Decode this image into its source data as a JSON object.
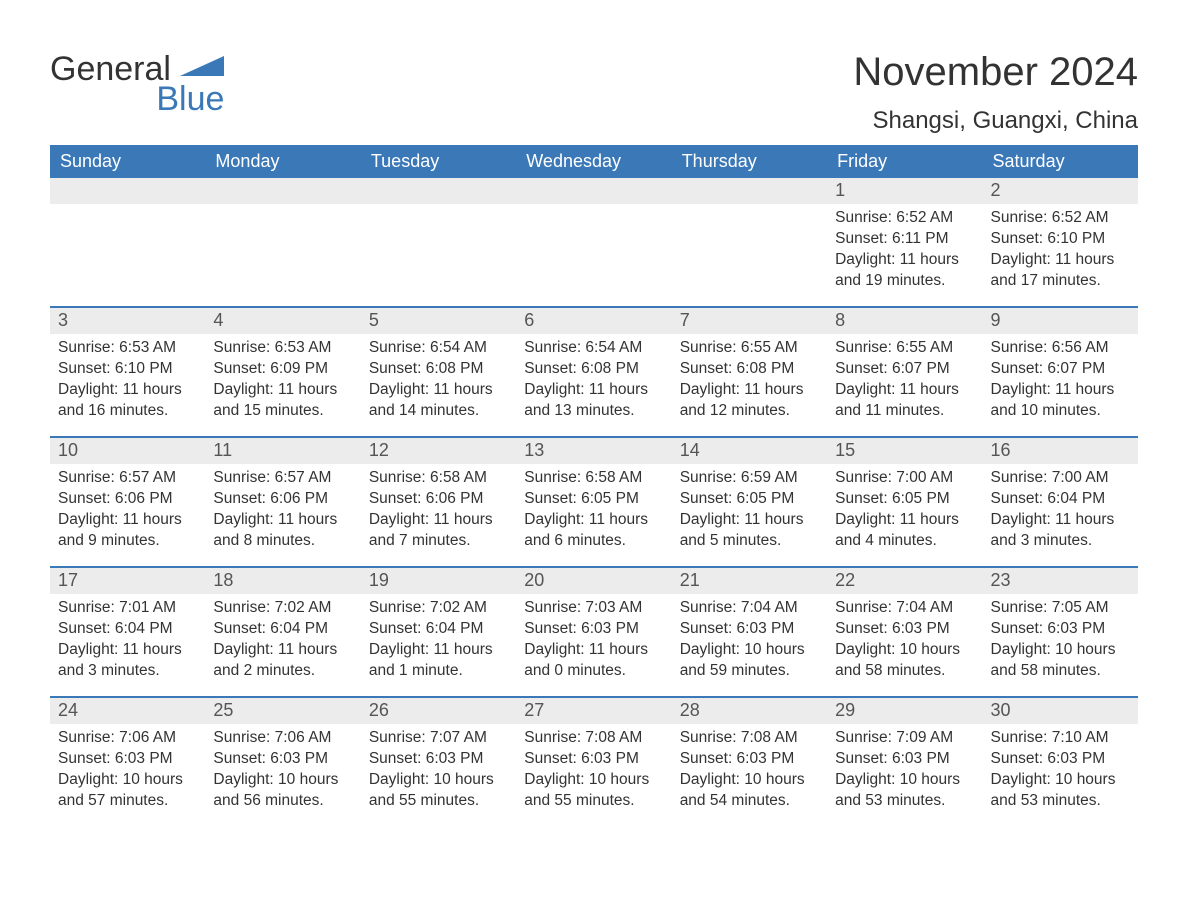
{
  "logo": {
    "text_top": "General",
    "text_bottom": "Blue",
    "shape_color": "#3a78b8"
  },
  "title": "November 2024",
  "subtitle": "Shangsi, Guangxi, China",
  "colors": {
    "header_bg": "#3a78b8",
    "header_text": "#ffffff",
    "daynum_bg": "#ececec",
    "text": "#333333",
    "week_divider": "#3a78b8",
    "page_bg": "#ffffff"
  },
  "fonts": {
    "title_size_pt": 30,
    "subtitle_size_pt": 18,
    "header_size_pt": 14,
    "body_size_pt": 12
  },
  "day_headers": [
    "Sunday",
    "Monday",
    "Tuesday",
    "Wednesday",
    "Thursday",
    "Friday",
    "Saturday"
  ],
  "weeks": [
    [
      {
        "blank": true
      },
      {
        "blank": true
      },
      {
        "blank": true
      },
      {
        "blank": true
      },
      {
        "blank": true
      },
      {
        "day": "1",
        "sunrise": "Sunrise: 6:52 AM",
        "sunset": "Sunset: 6:11 PM",
        "daylight": "Daylight: 11 hours and 19 minutes."
      },
      {
        "day": "2",
        "sunrise": "Sunrise: 6:52 AM",
        "sunset": "Sunset: 6:10 PM",
        "daylight": "Daylight: 11 hours and 17 minutes."
      }
    ],
    [
      {
        "day": "3",
        "sunrise": "Sunrise: 6:53 AM",
        "sunset": "Sunset: 6:10 PM",
        "daylight": "Daylight: 11 hours and 16 minutes."
      },
      {
        "day": "4",
        "sunrise": "Sunrise: 6:53 AM",
        "sunset": "Sunset: 6:09 PM",
        "daylight": "Daylight: 11 hours and 15 minutes."
      },
      {
        "day": "5",
        "sunrise": "Sunrise: 6:54 AM",
        "sunset": "Sunset: 6:08 PM",
        "daylight": "Daylight: 11 hours and 14 minutes."
      },
      {
        "day": "6",
        "sunrise": "Sunrise: 6:54 AM",
        "sunset": "Sunset: 6:08 PM",
        "daylight": "Daylight: 11 hours and 13 minutes."
      },
      {
        "day": "7",
        "sunrise": "Sunrise: 6:55 AM",
        "sunset": "Sunset: 6:08 PM",
        "daylight": "Daylight: 11 hours and 12 minutes."
      },
      {
        "day": "8",
        "sunrise": "Sunrise: 6:55 AM",
        "sunset": "Sunset: 6:07 PM",
        "daylight": "Daylight: 11 hours and 11 minutes."
      },
      {
        "day": "9",
        "sunrise": "Sunrise: 6:56 AM",
        "sunset": "Sunset: 6:07 PM",
        "daylight": "Daylight: 11 hours and 10 minutes."
      }
    ],
    [
      {
        "day": "10",
        "sunrise": "Sunrise: 6:57 AM",
        "sunset": "Sunset: 6:06 PM",
        "daylight": "Daylight: 11 hours and 9 minutes."
      },
      {
        "day": "11",
        "sunrise": "Sunrise: 6:57 AM",
        "sunset": "Sunset: 6:06 PM",
        "daylight": "Daylight: 11 hours and 8 minutes."
      },
      {
        "day": "12",
        "sunrise": "Sunrise: 6:58 AM",
        "sunset": "Sunset: 6:06 PM",
        "daylight": "Daylight: 11 hours and 7 minutes."
      },
      {
        "day": "13",
        "sunrise": "Sunrise: 6:58 AM",
        "sunset": "Sunset: 6:05 PM",
        "daylight": "Daylight: 11 hours and 6 minutes."
      },
      {
        "day": "14",
        "sunrise": "Sunrise: 6:59 AM",
        "sunset": "Sunset: 6:05 PM",
        "daylight": "Daylight: 11 hours and 5 minutes."
      },
      {
        "day": "15",
        "sunrise": "Sunrise: 7:00 AM",
        "sunset": "Sunset: 6:05 PM",
        "daylight": "Daylight: 11 hours and 4 minutes."
      },
      {
        "day": "16",
        "sunrise": "Sunrise: 7:00 AM",
        "sunset": "Sunset: 6:04 PM",
        "daylight": "Daylight: 11 hours and 3 minutes."
      }
    ],
    [
      {
        "day": "17",
        "sunrise": "Sunrise: 7:01 AM",
        "sunset": "Sunset: 6:04 PM",
        "daylight": "Daylight: 11 hours and 3 minutes."
      },
      {
        "day": "18",
        "sunrise": "Sunrise: 7:02 AM",
        "sunset": "Sunset: 6:04 PM",
        "daylight": "Daylight: 11 hours and 2 minutes."
      },
      {
        "day": "19",
        "sunrise": "Sunrise: 7:02 AM",
        "sunset": "Sunset: 6:04 PM",
        "daylight": "Daylight: 11 hours and 1 minute."
      },
      {
        "day": "20",
        "sunrise": "Sunrise: 7:03 AM",
        "sunset": "Sunset: 6:03 PM",
        "daylight": "Daylight: 11 hours and 0 minutes."
      },
      {
        "day": "21",
        "sunrise": "Sunrise: 7:04 AM",
        "sunset": "Sunset: 6:03 PM",
        "daylight": "Daylight: 10 hours and 59 minutes."
      },
      {
        "day": "22",
        "sunrise": "Sunrise: 7:04 AM",
        "sunset": "Sunset: 6:03 PM",
        "daylight": "Daylight: 10 hours and 58 minutes."
      },
      {
        "day": "23",
        "sunrise": "Sunrise: 7:05 AM",
        "sunset": "Sunset: 6:03 PM",
        "daylight": "Daylight: 10 hours and 58 minutes."
      }
    ],
    [
      {
        "day": "24",
        "sunrise": "Sunrise: 7:06 AM",
        "sunset": "Sunset: 6:03 PM",
        "daylight": "Daylight: 10 hours and 57 minutes."
      },
      {
        "day": "25",
        "sunrise": "Sunrise: 7:06 AM",
        "sunset": "Sunset: 6:03 PM",
        "daylight": "Daylight: 10 hours and 56 minutes."
      },
      {
        "day": "26",
        "sunrise": "Sunrise: 7:07 AM",
        "sunset": "Sunset: 6:03 PM",
        "daylight": "Daylight: 10 hours and 55 minutes."
      },
      {
        "day": "27",
        "sunrise": "Sunrise: 7:08 AM",
        "sunset": "Sunset: 6:03 PM",
        "daylight": "Daylight: 10 hours and 55 minutes."
      },
      {
        "day": "28",
        "sunrise": "Sunrise: 7:08 AM",
        "sunset": "Sunset: 6:03 PM",
        "daylight": "Daylight: 10 hours and 54 minutes."
      },
      {
        "day": "29",
        "sunrise": "Sunrise: 7:09 AM",
        "sunset": "Sunset: 6:03 PM",
        "daylight": "Daylight: 10 hours and 53 minutes."
      },
      {
        "day": "30",
        "sunrise": "Sunrise: 7:10 AM",
        "sunset": "Sunset: 6:03 PM",
        "daylight": "Daylight: 10 hours and 53 minutes."
      }
    ]
  ]
}
